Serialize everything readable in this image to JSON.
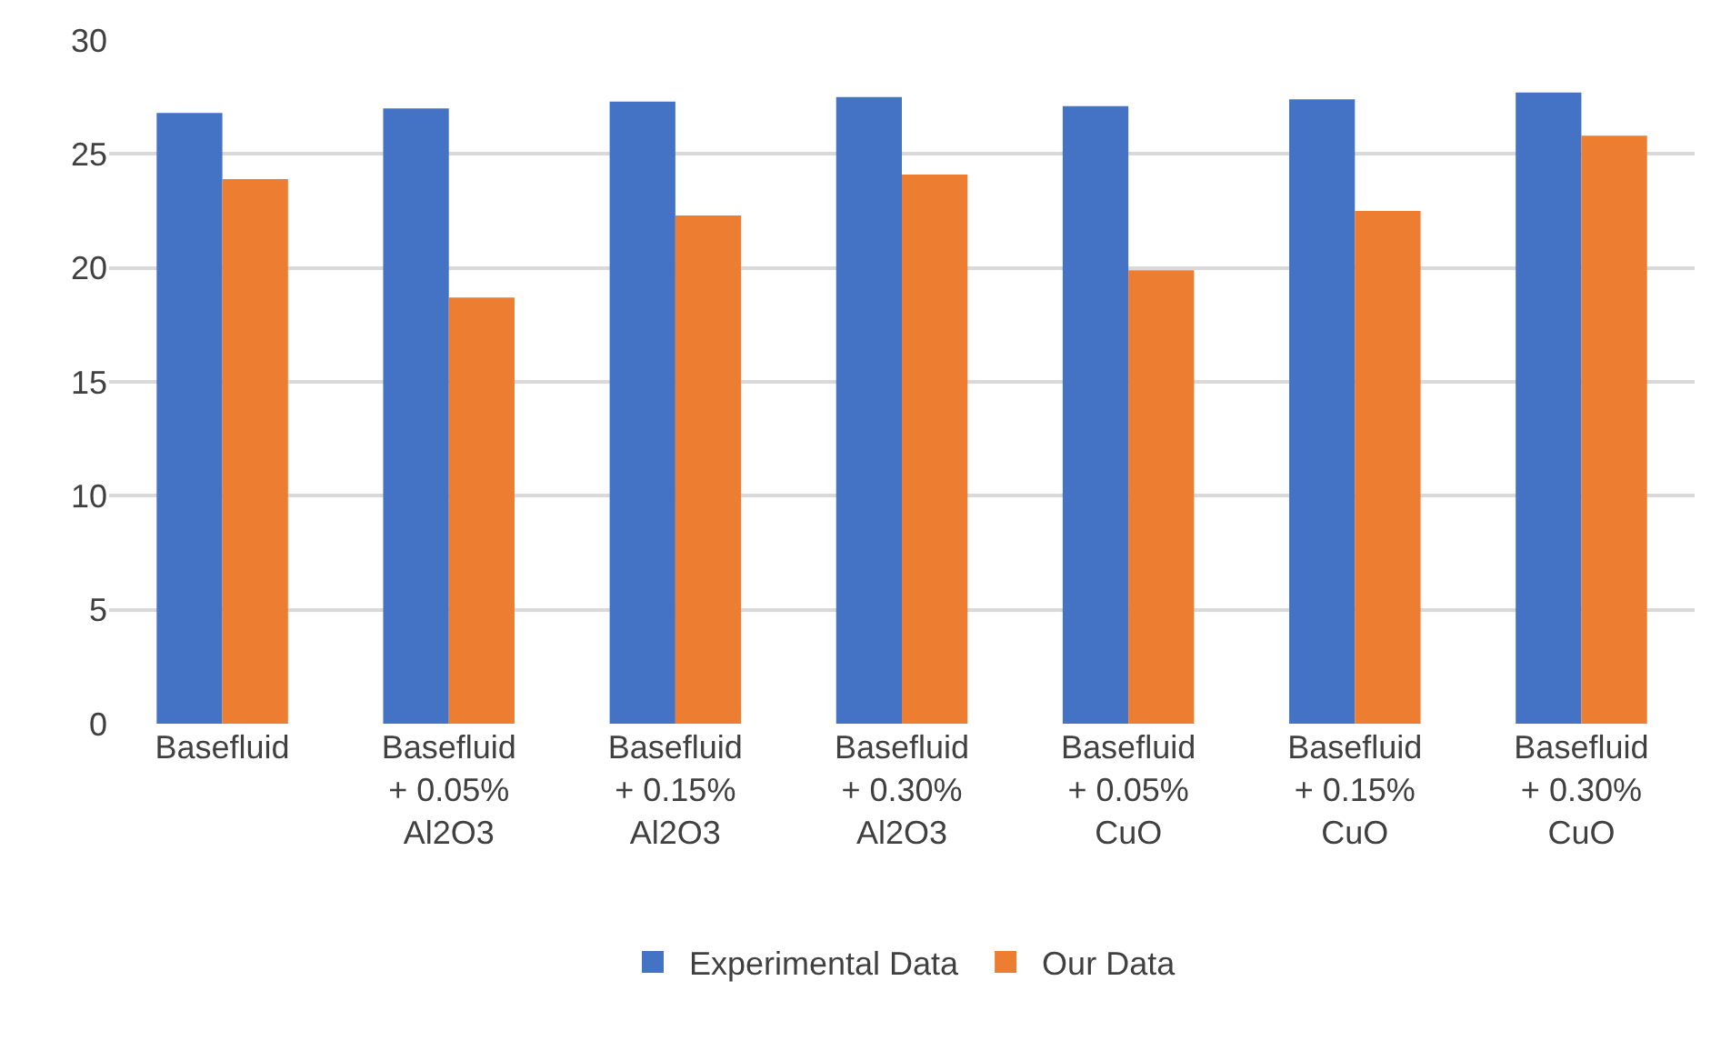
{
  "chart_data": {
    "type": "bar",
    "categories": [
      "Basefluid",
      "Basefluid + 0.05% Al2O3",
      "Basefluid + 0.15% Al2O3",
      "Basefluid + 0.30% Al2O3",
      "Basefluid + 0.05% CuO",
      "Basefluid + 0.15% CuO",
      "Basefluid + 0.30% CuO"
    ],
    "series": [
      {
        "name": "Experimental Data",
        "color": "#4472c4",
        "values": [
          26.8,
          27.0,
          27.3,
          27.5,
          27.1,
          27.4,
          27.7
        ]
      },
      {
        "name": "Our Data",
        "color": "#ed7d31",
        "values": [
          23.9,
          18.7,
          22.3,
          24.1,
          19.9,
          22.5,
          25.8
        ]
      }
    ],
    "ylim": [
      0,
      30
    ],
    "yticks": [
      0,
      5,
      10,
      15,
      20,
      25,
      30
    ],
    "grid": "y",
    "legend": "bottom"
  }
}
